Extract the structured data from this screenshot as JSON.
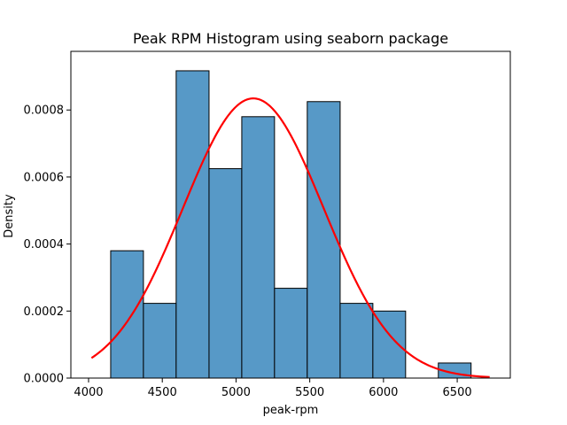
{
  "chart_data": {
    "type": "bar",
    "title": "Peak RPM Histogram using seaborn package",
    "xlabel": "peak-rpm",
    "ylabel": "Density",
    "xlim": [
      3880,
      6860
    ],
    "ylim": [
      0,
      0.000975
    ],
    "x_ticks": [
      4000,
      4500,
      5000,
      5500,
      6000,
      6500
    ],
    "x_tick_labels": [
      "4000",
      "4500",
      "5000",
      "5500",
      "6000",
      "6500"
    ],
    "y_ticks": [
      0,
      0.0002,
      0.0004,
      0.0006,
      0.0008
    ],
    "y_tick_labels": [
      "0.0000",
      "0.0002",
      "0.0004",
      "0.0006",
      "0.0008"
    ],
    "bins": [
      {
        "x0": 4150,
        "x1": 4372,
        "density": 0.00038
      },
      {
        "x0": 4372,
        "x1": 4594,
        "density": 0.000223
      },
      {
        "x0": 4594,
        "x1": 4817,
        "density": 0.000917
      },
      {
        "x0": 4817,
        "x1": 5039,
        "density": 0.000625
      },
      {
        "x0": 5039,
        "x1": 5261,
        "density": 0.00078
      },
      {
        "x0": 5261,
        "x1": 5483,
        "density": 0.000268
      },
      {
        "x0": 5483,
        "x1": 5706,
        "density": 0.000825
      },
      {
        "x0": 5706,
        "x1": 5928,
        "density": 0.000223
      },
      {
        "x0": 5928,
        "x1": 6150,
        "density": 0.0002
      },
      {
        "x0": 6150,
        "x1": 6372,
        "density": 0
      },
      {
        "x0": 6372,
        "x1": 6594,
        "density": 4.5e-05
      }
    ],
    "curve": {
      "mean": 5117,
      "std": 478,
      "x_start": 4020,
      "x_end": 6720
    },
    "bar_color": "#5799c7",
    "bar_edge_color": "#000000",
    "curve_color": "#ff0000",
    "grid": false,
    "legend": "none"
  }
}
